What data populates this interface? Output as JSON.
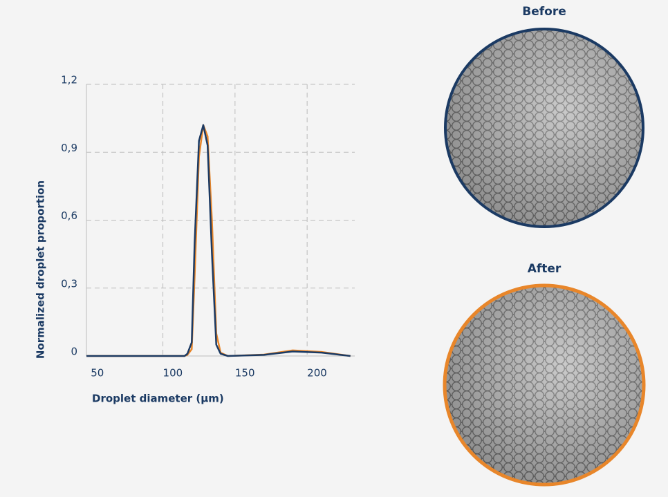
{
  "chart_data": {
    "type": "line",
    "x_label": "Droplet diameter (µm)",
    "y_label": "Normalized droplet proportion",
    "x": [
      47,
      100,
      115,
      117,
      120,
      122,
      125,
      128,
      131,
      134,
      137,
      140,
      145,
      170,
      190,
      210,
      230
    ],
    "series": [
      {
        "color": "#1b3a63",
        "values": [
          0,
          0,
          0,
          0.01,
          0.06,
          0.5,
          0.95,
          1.02,
          0.93,
          0.45,
          0.05,
          0.01,
          0,
          0.005,
          0.02,
          0.015,
          0
        ]
      },
      {
        "color": "#e8862a",
        "values": [
          0,
          0,
          0,
          0.005,
          0.03,
          0.35,
          0.88,
          1.02,
          0.97,
          0.6,
          0.1,
          0.015,
          0,
          0.006,
          0.025,
          0.018,
          0
        ]
      }
    ],
    "xlim": [
      47,
      233
    ],
    "xticks": [
      50,
      100,
      150,
      200
    ],
    "ylim": [
      0,
      1.2
    ],
    "yticks": [
      0,
      {
        "value": 0.3,
        "label": "0,3"
      },
      {
        "value": 0.6,
        "label": "0,6"
      },
      {
        "value": 0.9,
        "label": "0,9"
      },
      {
        "value": 1.2,
        "label": "1,2"
      }
    ],
    "grid": true
  },
  "images": [
    {
      "title": "Before",
      "color": "#1b3a63"
    },
    {
      "title": "After",
      "color": "#e8862a"
    }
  ]
}
